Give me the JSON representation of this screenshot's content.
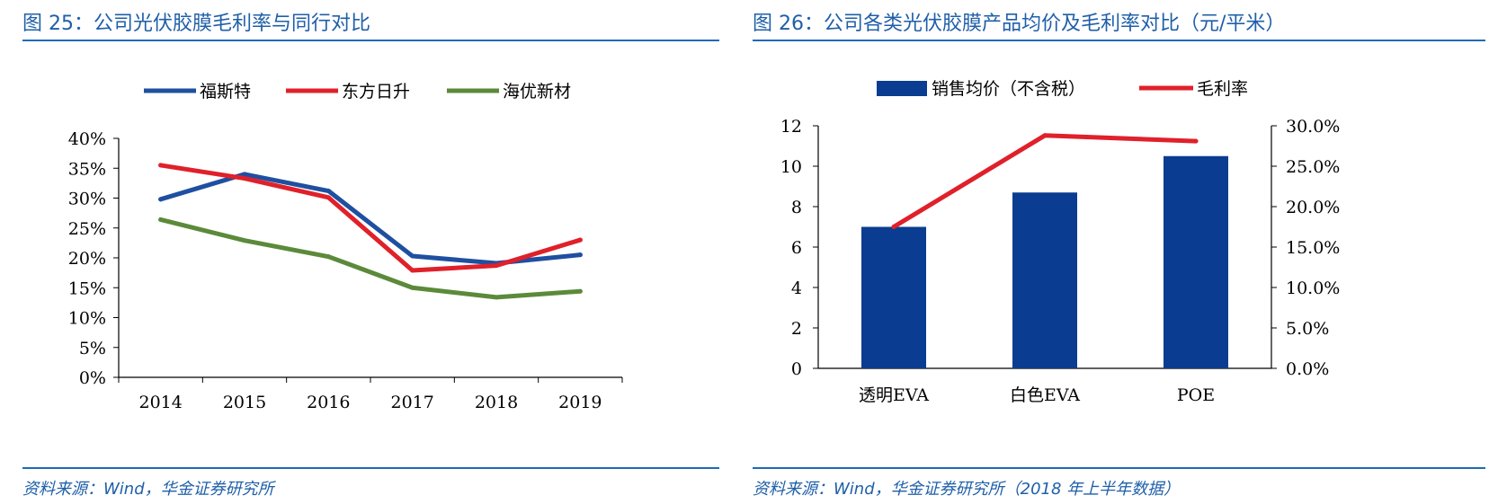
{
  "fig25": {
    "title": "图 25：公司光伏胶膜毛利率与同行对比",
    "source": "资料来源：Wind，华金证券研究所"
  },
  "fig26": {
    "title": "图 26：公司各类光伏胶膜产品均价及毛利率对比（元/平米）",
    "source": "资料来源：Wind，华金证券研究所（2018 年上半年数据）"
  },
  "chart_data": [
    {
      "type": "line",
      "title": "公司光伏胶膜毛利率与同行对比",
      "categories": [
        "2014",
        "2015",
        "2016",
        "2017",
        "2018",
        "2019"
      ],
      "ylim": [
        0,
        40
      ],
      "yticks": [
        "0%",
        "5%",
        "10%",
        "15%",
        "20%",
        "25%",
        "30%",
        "35%",
        "40%"
      ],
      "legend_position": "top",
      "series": [
        {
          "name": "福斯特",
          "color": "#1f4fa0",
          "values": [
            29.8,
            34.0,
            31.2,
            20.3,
            19.1,
            20.5
          ]
        },
        {
          "name": "东方日升",
          "color": "#e0202a",
          "values": [
            35.5,
            33.3,
            30.1,
            17.9,
            18.7,
            23.0
          ]
        },
        {
          "name": "海优新材",
          "color": "#5b8a3a",
          "values": [
            26.4,
            22.9,
            20.2,
            15.0,
            13.4,
            14.4
          ]
        }
      ]
    },
    {
      "type": "bar",
      "title": "公司各类光伏胶膜产品均价及毛利率对比（元/平米）",
      "categories": [
        "透明EVA",
        "白色EVA",
        "POE"
      ],
      "ylim": [
        0,
        12
      ],
      "yticks": [
        "0",
        "2",
        "4",
        "6",
        "8",
        "10",
        "12"
      ],
      "y2lim": [
        0,
        30
      ],
      "y2ticks": [
        "0.0%",
        "5.0%",
        "10.0%",
        "15.0%",
        "20.0%",
        "25.0%",
        "30.0%"
      ],
      "legend_position": "top",
      "series": [
        {
          "name": "销售均价（不含税）",
          "kind": "bar",
          "axis": "left",
          "color": "#0a3d91",
          "values": [
            7.0,
            8.7,
            10.5
          ]
        },
        {
          "name": "毛利率",
          "kind": "line",
          "axis": "right",
          "color": "#e0202a",
          "values": [
            17.5,
            28.8,
            28.1
          ]
        }
      ]
    }
  ]
}
